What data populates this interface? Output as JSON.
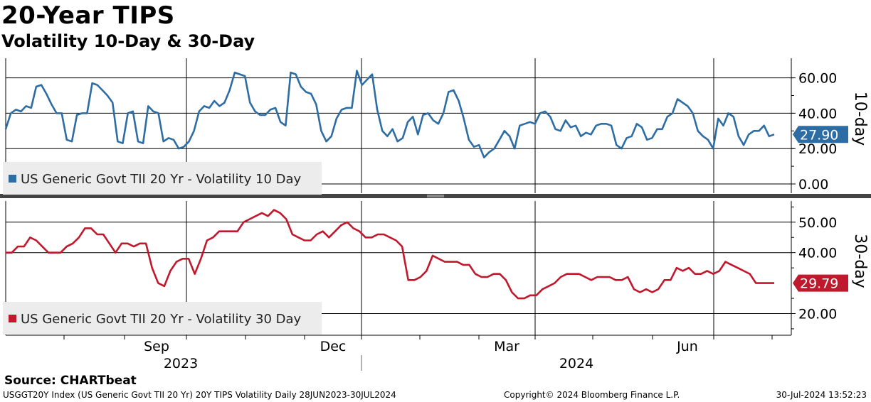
{
  "header": {
    "title": "20-Year TIPS",
    "subtitle": "Volatility 10-Day & 30-Day"
  },
  "footer": {
    "source": "Source: CHARTbeat",
    "index_info": "USGGT20Y Index (US Generic Govt TII 20 Yr) 20Y TIPS Volatility  Daily 28JUN2023-30JUL2024",
    "copyright": "Copyright© 2024 Bloomberg Finance L.P.",
    "timestamp": "30-Jul-2024 13:52:23"
  },
  "chart_data": [
    {
      "type": "line",
      "panel": "top",
      "axis_title": "10-day",
      "ylim": [
        0,
        70
      ],
      "yticks": [
        "0.00",
        "20.00",
        "40.00",
        "60.00"
      ],
      "ytick_values": [
        0,
        20,
        40,
        60
      ],
      "last_value_label": "27.90",
      "color": "#2e6da4",
      "legend": "US Generic Govt TII 20 Yr - Volatility 10 Day",
      "series": [
        {
          "name": "US Generic Govt TII 20 Yr - Volatility 10 Day",
          "points": [
            [
              0,
              31
            ],
            [
              1,
              40
            ],
            [
              2,
              42
            ],
            [
              3,
              41
            ],
            [
              4,
              44
            ],
            [
              5,
              43
            ],
            [
              6,
              55
            ],
            [
              7,
              56
            ],
            [
              8,
              51
            ],
            [
              9,
              45
            ],
            [
              10,
              40
            ],
            [
              11,
              40
            ],
            [
              12,
              25
            ],
            [
              13,
              24
            ],
            [
              14,
              39
            ],
            [
              15,
              40
            ],
            [
              16,
              40
            ],
            [
              17,
              57
            ],
            [
              18,
              56
            ],
            [
              19,
              53
            ],
            [
              20,
              50
            ],
            [
              21,
              46
            ],
            [
              22,
              24
            ],
            [
              23,
              23
            ],
            [
              24,
              40
            ],
            [
              25,
              41
            ],
            [
              26,
              24
            ],
            [
              27,
              23
            ],
            [
              28,
              44
            ],
            [
              29,
              41
            ],
            [
              30,
              40
            ],
            [
              31,
              24
            ],
            [
              32,
              26
            ],
            [
              33,
              25
            ],
            [
              34,
              20
            ],
            [
              35,
              21
            ],
            [
              36,
              24
            ],
            [
              37,
              30
            ],
            [
              38,
              41
            ],
            [
              39,
              44
            ],
            [
              40,
              43
            ],
            [
              41,
              47
            ],
            [
              42,
              44
            ],
            [
              43,
              46
            ],
            [
              44,
              53
            ],
            [
              45,
              63
            ],
            [
              46,
              62
            ],
            [
              47,
              61
            ],
            [
              48,
              46
            ],
            [
              49,
              41
            ],
            [
              50,
              39
            ],
            [
              51,
              39
            ],
            [
              52,
              42
            ],
            [
              53,
              43
            ],
            [
              54,
              35
            ],
            [
              55,
              33
            ],
            [
              56,
              63
            ],
            [
              57,
              62
            ],
            [
              58,
              55
            ],
            [
              59,
              52
            ],
            [
              60,
              51
            ],
            [
              61,
              45
            ],
            [
              62,
              30
            ],
            [
              63,
              24
            ],
            [
              64,
              27
            ],
            [
              65,
              37
            ],
            [
              66,
              42
            ],
            [
              67,
              43
            ],
            [
              68,
              43
            ],
            [
              69,
              64
            ],
            [
              70,
              56
            ],
            [
              71,
              59
            ],
            [
              72,
              62
            ],
            [
              73,
              42
            ],
            [
              74,
              30
            ],
            [
              75,
              27
            ],
            [
              76,
              31
            ],
            [
              77,
              24
            ],
            [
              78,
              26
            ],
            [
              79,
              35
            ],
            [
              80,
              38
            ],
            [
              81,
              28
            ],
            [
              82,
              39
            ],
            [
              83,
              40
            ],
            [
              84,
              36
            ],
            [
              85,
              34
            ],
            [
              86,
              40
            ],
            [
              87,
              52
            ],
            [
              88,
              53
            ],
            [
              89,
              47
            ],
            [
              90,
              37
            ],
            [
              91,
              25
            ],
            [
              92,
              21
            ],
            [
              93,
              22
            ],
            [
              94,
              15
            ],
            [
              95,
              18
            ],
            [
              96,
              20
            ],
            [
              97,
              25
            ],
            [
              98,
              30
            ],
            [
              99,
              27
            ],
            [
              100,
              20
            ],
            [
              101,
              33
            ],
            [
              102,
              34
            ],
            [
              103,
              35
            ],
            [
              104,
              34
            ],
            [
              105,
              40
            ],
            [
              106,
              41
            ],
            [
              107,
              38
            ],
            [
              108,
              31
            ],
            [
              109,
              30
            ],
            [
              110,
              36
            ],
            [
              111,
              32
            ],
            [
              112,
              33
            ],
            [
              113,
              27
            ],
            [
              114,
              29
            ],
            [
              115,
              28
            ],
            [
              116,
              33
            ],
            [
              117,
              34
            ],
            [
              118,
              34
            ],
            [
              119,
              33
            ],
            [
              120,
              22
            ],
            [
              121,
              20
            ],
            [
              122,
              26
            ],
            [
              123,
              27
            ],
            [
              124,
              34
            ],
            [
              125,
              32
            ],
            [
              126,
              25
            ],
            [
              127,
              26
            ],
            [
              128,
              31
            ],
            [
              129,
              31
            ],
            [
              130,
              38
            ],
            [
              131,
              40
            ],
            [
              132,
              48
            ],
            [
              133,
              46
            ],
            [
              134,
              44
            ],
            [
              135,
              40
            ],
            [
              136,
              30
            ],
            [
              137,
              27
            ],
            [
              138,
              25
            ],
            [
              139,
              20
            ],
            [
              140,
              37
            ],
            [
              141,
              33
            ],
            [
              142,
              40
            ],
            [
              143,
              38
            ],
            [
              144,
              27
            ],
            [
              145,
              22
            ],
            [
              146,
              28
            ],
            [
              147,
              30
            ],
            [
              148,
              30
            ],
            [
              149,
              33
            ],
            [
              150,
              27
            ],
            [
              151,
              28
            ]
          ]
        }
      ]
    },
    {
      "type": "line",
      "panel": "bottom",
      "axis_title": "30-day",
      "ylim": [
        12,
        58
      ],
      "yticks": [
        "20.00",
        "40.00",
        "50.00"
      ],
      "ytick_values": [
        20,
        40,
        50
      ],
      "last_value_label": "29.79",
      "color": "#c0182c",
      "legend": "US Generic Govt TII 20 Yr - Volatility 30 Day",
      "series": [
        {
          "name": "US Generic Govt TII 20 Yr - Volatility 30 Day",
          "points": [
            [
              0,
              40
            ],
            [
              1,
              40
            ],
            [
              2,
              42
            ],
            [
              3,
              42
            ],
            [
              4,
              45
            ],
            [
              5,
              44
            ],
            [
              6,
              42
            ],
            [
              7,
              40
            ],
            [
              8,
              40
            ],
            [
              9,
              40
            ],
            [
              10,
              42
            ],
            [
              11,
              43
            ],
            [
              12,
              45
            ],
            [
              13,
              48
            ],
            [
              14,
              48
            ],
            [
              15,
              46
            ],
            [
              16,
              46
            ],
            [
              17,
              43
            ],
            [
              18,
              40
            ],
            [
              19,
              43
            ],
            [
              20,
              43
            ],
            [
              21,
              42
            ],
            [
              22,
              43
            ],
            [
              23,
              43
            ],
            [
              24,
              35
            ],
            [
              25,
              30
            ],
            [
              26,
              29
            ],
            [
              27,
              34
            ],
            [
              28,
              37
            ],
            [
              29,
              38
            ],
            [
              30,
              38
            ],
            [
              31,
              33
            ],
            [
              32,
              38
            ],
            [
              33,
              44
            ],
            [
              34,
              45
            ],
            [
              35,
              47
            ],
            [
              36,
              47
            ],
            [
              37,
              47
            ],
            [
              38,
              47
            ],
            [
              39,
              50
            ],
            [
              40,
              51
            ],
            [
              41,
              52
            ],
            [
              42,
              53
            ],
            [
              43,
              52
            ],
            [
              44,
              54
            ],
            [
              45,
              53
            ],
            [
              46,
              51
            ],
            [
              47,
              46
            ],
            [
              48,
              45
            ],
            [
              49,
              44
            ],
            [
              50,
              44
            ],
            [
              51,
              46
            ],
            [
              52,
              47
            ],
            [
              53,
              45
            ],
            [
              54,
              47
            ],
            [
              55,
              49
            ],
            [
              56,
              50
            ],
            [
              57,
              48
            ],
            [
              58,
              47
            ],
            [
              59,
              45
            ],
            [
              60,
              45
            ],
            [
              61,
              46
            ],
            [
              62,
              46
            ],
            [
              63,
              45
            ],
            [
              64,
              44
            ],
            [
              65,
              42
            ],
            [
              66,
              31
            ],
            [
              67,
              31
            ],
            [
              68,
              32
            ],
            [
              69,
              34
            ],
            [
              70,
              39
            ],
            [
              71,
              38
            ],
            [
              72,
              37
            ],
            [
              73,
              37
            ],
            [
              74,
              37
            ],
            [
              75,
              36
            ],
            [
              76,
              36
            ],
            [
              77,
              33
            ],
            [
              78,
              32
            ],
            [
              79,
              32
            ],
            [
              80,
              33
            ],
            [
              81,
              33
            ],
            [
              82,
              31
            ],
            [
              83,
              27
            ],
            [
              84,
              25
            ],
            [
              85,
              25
            ],
            [
              86,
              26
            ],
            [
              87,
              26
            ],
            [
              88,
              28
            ],
            [
              89,
              29
            ],
            [
              90,
              30
            ],
            [
              91,
              32
            ],
            [
              92,
              33
            ],
            [
              93,
              33
            ],
            [
              94,
              33
            ],
            [
              95,
              32
            ],
            [
              96,
              31
            ],
            [
              97,
              32
            ],
            [
              98,
              32
            ],
            [
              99,
              32
            ],
            [
              100,
              31
            ],
            [
              101,
              31
            ],
            [
              102,
              32
            ],
            [
              103,
              28
            ],
            [
              104,
              27
            ],
            [
              105,
              28
            ],
            [
              106,
              27
            ],
            [
              107,
              28
            ],
            [
              108,
              31
            ],
            [
              109,
              31
            ],
            [
              110,
              35
            ],
            [
              111,
              34
            ],
            [
              112,
              35
            ],
            [
              113,
              33
            ],
            [
              114,
              33
            ],
            [
              115,
              34
            ],
            [
              116,
              33
            ],
            [
              117,
              34
            ],
            [
              118,
              37
            ],
            [
              119,
              36
            ],
            [
              120,
              35
            ],
            [
              121,
              34
            ],
            [
              122,
              33
            ],
            [
              123,
              30
            ],
            [
              124,
              30
            ],
            [
              125,
              30
            ],
            [
              126,
              30
            ]
          ]
        }
      ]
    }
  ],
  "xaxis": {
    "month_labels": [
      {
        "label": "Sep",
        "x_month": 2
      },
      {
        "label": "Dec",
        "x_month": 5
      },
      {
        "label": "Mar",
        "x_month": 8
      },
      {
        "label": "Jun",
        "x_month": 11
      }
    ],
    "year_labels": [
      {
        "label": "2023"
      },
      {
        "label": "2024"
      }
    ]
  }
}
